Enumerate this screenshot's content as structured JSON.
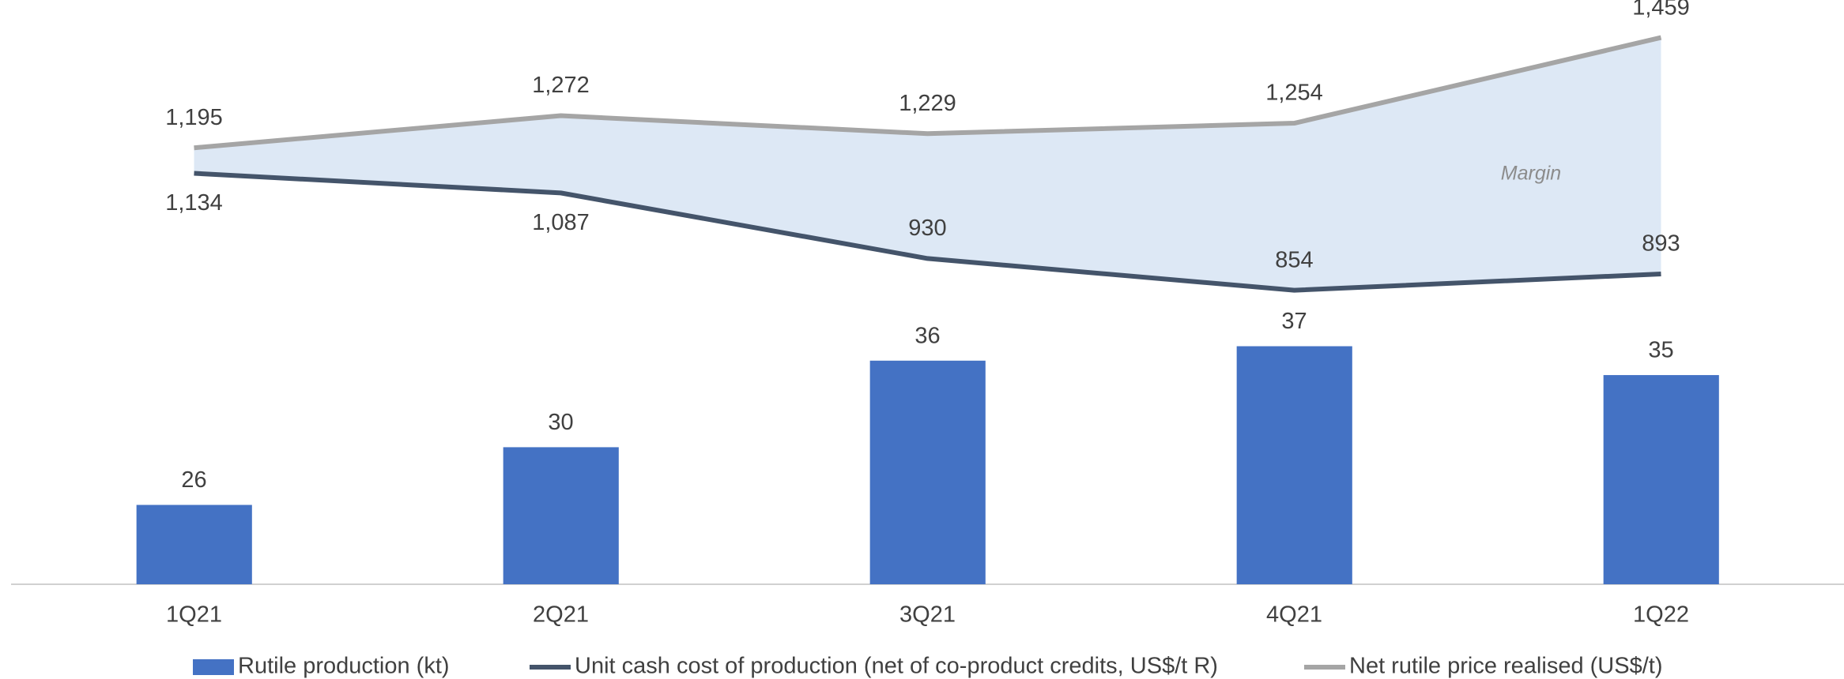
{
  "chart_data": {
    "type": "bar",
    "categories": [
      "1Q21",
      "2Q21",
      "3Q21",
      "4Q21",
      "1Q22"
    ],
    "ylim": [
      20.5,
      61
    ],
    "y2lim": [
      150,
      1549
    ],
    "annotation": "Margin",
    "series": [
      {
        "name": "Rutile production (kt)",
        "type": "bar",
        "color": "#4472c4",
        "values": [
          26,
          30,
          36,
          37,
          35
        ]
      },
      {
        "name": "Unit cash cost of production (net of co-product credits, US$/t R)",
        "type": "line",
        "axis": "y2",
        "color": "#44546a",
        "values": [
          1134,
          1087,
          930,
          854,
          893
        ],
        "value_labels": [
          "1,134",
          "1,087",
          "930",
          "854",
          "893"
        ]
      },
      {
        "name": "Net rutile price realised (US$/t)",
        "type": "line",
        "axis": "y2",
        "color": "#a5a5a5",
        "values": [
          1195,
          1272,
          1229,
          1254,
          1459
        ],
        "value_labels": [
          "1,195",
          "1,272",
          "1,229",
          "1,254",
          "1,459"
        ]
      }
    ],
    "margin_fill": "#dde8f5"
  }
}
